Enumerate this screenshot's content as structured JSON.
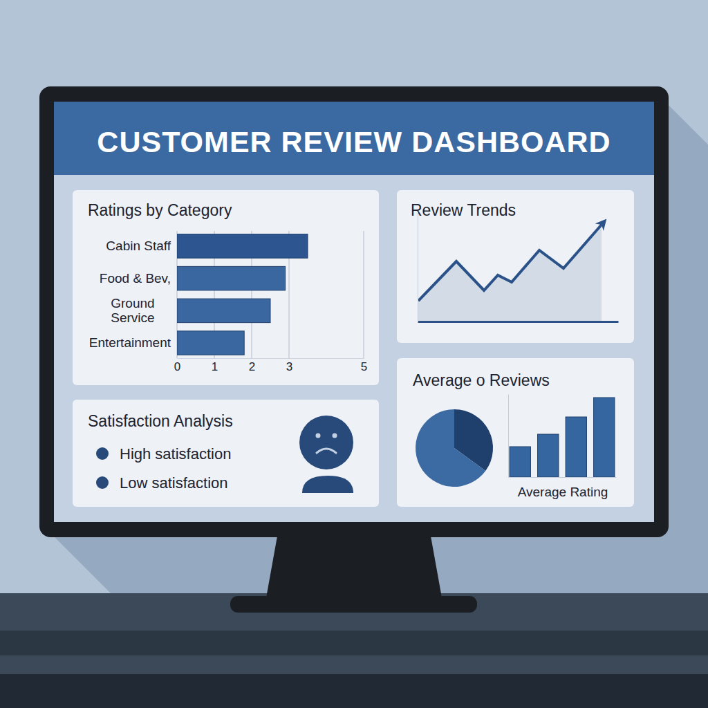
{
  "header": {
    "title": "CUSTOMER REVIEW DASHBOARD"
  },
  "chart_data": [
    {
      "type": "bar",
      "title": "Ratings by Category",
      "orientation": "horizontal",
      "categories": [
        "Cabin Staff",
        "Food & Bev,",
        "Ground Service",
        "Entertainment"
      ],
      "values": [
        3.5,
        2.9,
        2.5,
        1.8
      ],
      "colors": [
        "#2d5590",
        "#3a67a0",
        "#3a67a0",
        "#3a67a0"
      ],
      "xlim": [
        0,
        5
      ],
      "xticks": [
        0,
        1,
        2,
        3,
        5
      ],
      "grid": true
    },
    {
      "type": "line",
      "title": "Review Trends",
      "x": [
        1,
        56,
        96,
        116,
        136,
        176,
        211,
        266
      ],
      "values": [
        30,
        87,
        45,
        67,
        57,
        103,
        77,
        140
      ],
      "xlim": [
        0,
        290
      ],
      "ylim": [
        0,
        160
      ],
      "color": "#2a5288",
      "tick_labels": false
    },
    {
      "type": "pie",
      "title": "Average o Reviews",
      "values": [
        35,
        65
      ],
      "colors": [
        "#1f3f6d",
        "#3c6aa2"
      ]
    },
    {
      "type": "bar",
      "x_label": "Average Rating",
      "categories": [
        null,
        null,
        null,
        null
      ],
      "values": [
        44,
        62,
        87,
        115
      ],
      "ylim": [
        0,
        120
      ],
      "color": "#3566a0",
      "tick_labels": false
    }
  ],
  "satisfaction": {
    "title": "Satisfaction Analysis",
    "items": [
      "High satisfaction",
      "Low satisfaction"
    ]
  }
}
